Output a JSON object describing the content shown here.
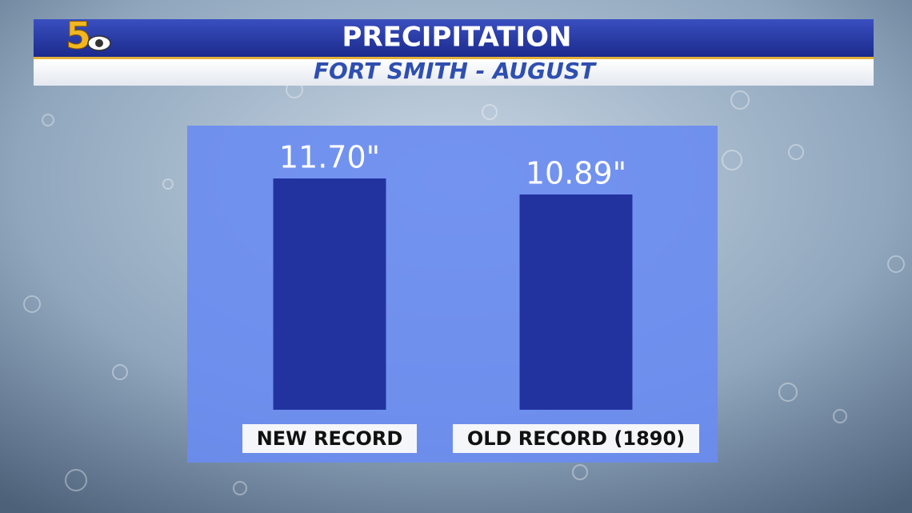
{
  "station_logo": "5",
  "chart_data": {
    "type": "bar",
    "title": "PRECIPITATION",
    "subtitle": "FORT SMITH - AUGUST",
    "categories": [
      "NEW RECORD",
      "OLD RECORD (1890)"
    ],
    "values": [
      11.7,
      10.89
    ],
    "value_labels": [
      "11.70\"",
      "10.89\""
    ],
    "color": "#2233a0"
  }
}
